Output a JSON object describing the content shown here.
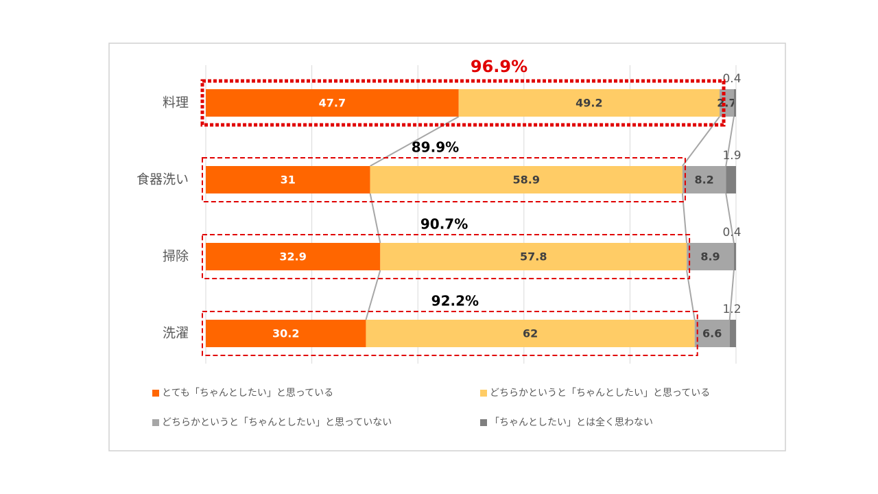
{
  "chart_data": {
    "type": "stacked_bar_horizontal",
    "categories": [
      "料理",
      "食器洗い",
      "掃除",
      "洗濯"
    ],
    "series": [
      {
        "name": "とても「ちゃんとしたい」と思っている",
        "color": "#ff6600",
        "values": [
          47.7,
          31,
          32.9,
          30.2
        ]
      },
      {
        "name": "どちらかというと「ちゃんとしたい」と思っている",
        "color": "#ffcc66",
        "values": [
          49.2,
          58.9,
          57.8,
          62
        ]
      },
      {
        "name": "どちらかというと「ちゃんとしたい」と思っていない",
        "color": "#a6a6a6",
        "values": [
          2.7,
          8.2,
          8.9,
          6.6
        ]
      },
      {
        "name": "「ちゃんとしたい」とは全く思わない",
        "color": "#7f7f7f",
        "values": [
          0.4,
          1.9,
          0.4,
          1.2
        ]
      }
    ],
    "annotations": [
      "96.9%",
      "89.9%",
      "90.7%",
      "92.2%"
    ],
    "xlim": [
      0,
      100
    ],
    "xticks": [
      0,
      20,
      40,
      60,
      80,
      100
    ],
    "grid": true
  }
}
